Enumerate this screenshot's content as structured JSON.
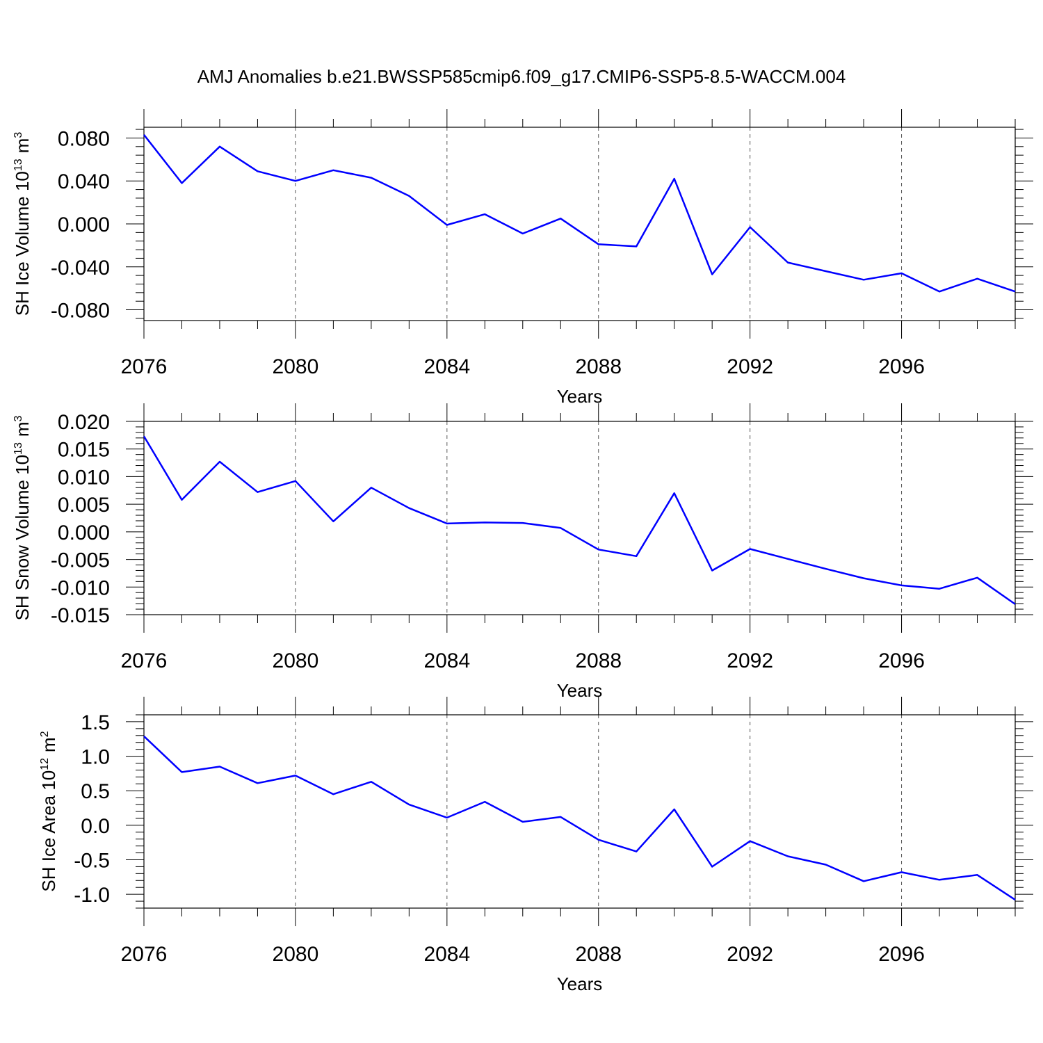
{
  "title": "AMJ Anomalies b.e21.BWSSP585cmip6.f09_g17.CMIP6-SSP5-8.5-WACCM.004",
  "line_color": "#0000ff",
  "chart_data": [
    {
      "type": "line",
      "xlabel": "Years",
      "ylabel": {
        "text": "SH Ice Volume 10",
        "exp": "13",
        "unit": "m",
        "unit_exp": "3"
      },
      "xlim": [
        2076,
        2099
      ],
      "ylim": [
        -0.09,
        0.09
      ],
      "xticks": [
        "2076",
        "2080",
        "2084",
        "2088",
        "2092",
        "2096"
      ],
      "yticks": [
        "0.080",
        "0.040",
        "0.000",
        "-0.040",
        "-0.080"
      ],
      "grid_x": true,
      "x": [
        2076,
        2077,
        2078,
        2079,
        2080,
        2081,
        2082,
        2083,
        2084,
        2085,
        2086,
        2087,
        2088,
        2089,
        2090,
        2091,
        2092,
        2093,
        2094,
        2095,
        2096,
        2097,
        2098,
        2099
      ],
      "values": [
        0.083,
        0.038,
        0.072,
        0.049,
        0.04,
        0.05,
        0.043,
        0.026,
        -0.001,
        0.009,
        -0.009,
        0.005,
        -0.019,
        -0.021,
        0.042,
        -0.047,
        -0.003,
        -0.036,
        -0.044,
        -0.052,
        -0.046,
        -0.063,
        -0.051,
        -0.063
      ]
    },
    {
      "type": "line",
      "xlabel": "Years",
      "ylabel": {
        "text": "SH Snow Volume 10",
        "exp": "13",
        "unit": "m",
        "unit_exp": "3"
      },
      "xlim": [
        2076,
        2099
      ],
      "ylim": [
        -0.015,
        0.02
      ],
      "xticks": [
        "2076",
        "2080",
        "2084",
        "2088",
        "2092",
        "2096"
      ],
      "yticks": [
        "0.020",
        "0.015",
        "0.010",
        "0.005",
        "0.000",
        "-0.005",
        "-0.010",
        "-0.015"
      ],
      "grid_x": true,
      "x": [
        2076,
        2077,
        2078,
        2079,
        2080,
        2081,
        2082,
        2083,
        2084,
        2085,
        2086,
        2087,
        2088,
        2089,
        2090,
        2091,
        2092,
        2093,
        2094,
        2095,
        2096,
        2097,
        2098,
        2099
      ],
      "values": [
        0.0173,
        0.0058,
        0.0127,
        0.0072,
        0.0092,
        0.0019,
        0.008,
        0.0043,
        0.0015,
        0.0017,
        0.0016,
        0.0007,
        -0.0032,
        -0.0044,
        0.007,
        -0.007,
        -0.0031,
        -0.0049,
        -0.0067,
        -0.0084,
        -0.0097,
        -0.0103,
        -0.0083,
        -0.0131
      ]
    },
    {
      "type": "line",
      "xlabel": "Years",
      "ylabel": {
        "text": "SH Ice Area 10",
        "exp": "12",
        "unit": "m",
        "unit_exp": "2"
      },
      "xlim": [
        2076,
        2099
      ],
      "ylim": [
        -1.2,
        1.6
      ],
      "xticks": [
        "2076",
        "2080",
        "2084",
        "2088",
        "2092",
        "2096"
      ],
      "yticks": [
        "1.5",
        "1.0",
        "0.5",
        "0.0",
        "-0.5",
        "-1.0"
      ],
      "grid_x": true,
      "x": [
        2076,
        2077,
        2078,
        2079,
        2080,
        2081,
        2082,
        2083,
        2084,
        2085,
        2086,
        2087,
        2088,
        2089,
        2090,
        2091,
        2092,
        2093,
        2094,
        2095,
        2096,
        2097,
        2098,
        2099
      ],
      "values": [
        1.29,
        0.77,
        0.85,
        0.61,
        0.72,
        0.45,
        0.63,
        0.3,
        0.11,
        0.34,
        0.05,
        0.12,
        -0.21,
        -0.38,
        0.23,
        -0.6,
        -0.23,
        -0.45,
        -0.57,
        -0.81,
        -0.68,
        -0.79,
        -0.72,
        -1.08
      ]
    }
  ]
}
